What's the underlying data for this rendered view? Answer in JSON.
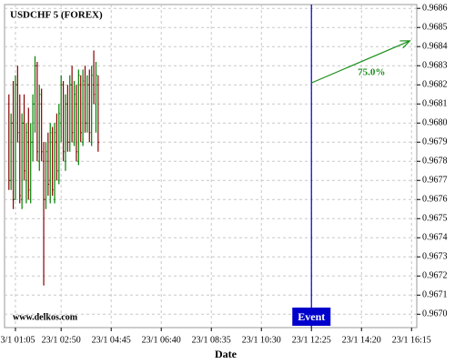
{
  "chart_data": {
    "type": "ohlc",
    "title": "USDCHF 5 (FOREX)",
    "watermark": "www.delkos.com",
    "x_label": "Date",
    "up_color": "#008000",
    "down_color": "#8b0000",
    "grid": true,
    "xlim": [
      "23/1 00:40",
      "23/1 16:27"
    ],
    "ylim": [
      0.96693,
      0.96862
    ],
    "yticks": [
      {
        "value": 0.967,
        "label": "0.9670"
      },
      0.9671,
      0.9672,
      0.9673,
      0.9674,
      0.9675,
      0.9676,
      0.9677,
      0.9678,
      0.9679,
      {
        "value": 0.968,
        "label": "0.9680"
      },
      0.9681,
      0.9682,
      0.9683,
      0.9684,
      0.9685,
      0.9686
    ],
    "xticks": [
      "23/1 01:05",
      "23/1 02:50",
      "23/1 04:45",
      "23/1 06:40",
      "23/1 08:35",
      "23/1 10:30",
      "23/1 12:25",
      "23/1 14:20",
      "23/1 16:15"
    ],
    "x": [
      "23/1 00:50",
      "23/1 00:55",
      "23/1 01:00",
      "23/1 01:05",
      "23/1 01:10",
      "23/1 01:15",
      "23/1 01:20",
      "23/1 01:25",
      "23/1 01:30",
      "23/1 01:35",
      "23/1 01:40",
      "23/1 01:45",
      "23/1 01:50",
      "23/1 01:55",
      "23/1 02:00",
      "23/1 02:05",
      "23/1 02:10",
      "23/1 02:15",
      "23/1 02:20",
      "23/1 02:25",
      "23/1 02:30",
      "23/1 02:35",
      "23/1 02:40",
      "23/1 02:45",
      "23/1 02:50",
      "23/1 02:55",
      "23/1 03:00",
      "23/1 03:05",
      "23/1 03:10",
      "23/1 03:15",
      "23/1 03:20",
      "23/1 03:25",
      "23/1 03:30",
      "23/1 03:35",
      "23/1 03:40",
      "23/1 03:45",
      "23/1 03:50",
      "23/1 03:55",
      "23/1 04:00",
      "23/1 04:05",
      "23/1 04:10",
      "23/1 04:15"
    ],
    "open": [
      0.9681,
      0.9677,
      0.968,
      0.9676,
      0.9682,
      0.9679,
      0.9676,
      0.968,
      0.9677,
      0.9679,
      0.9676,
      0.9679,
      0.9681,
      0.9683,
      0.9678,
      0.9681,
      0.9678,
      0.9676,
      0.9678,
      0.9677,
      0.9679,
      0.9676,
      0.9679,
      0.9677,
      0.968,
      0.9682,
      0.9678,
      0.9681,
      0.9679,
      0.9682,
      0.9679,
      0.9681,
      0.9678,
      0.9682,
      0.9679,
      0.9682,
      0.968,
      0.9682,
      0.9679,
      0.9682,
      0.9681,
      0.9682
    ],
    "high": [
      0.96815,
      0.96805,
      0.96822,
      0.96825,
      0.9683,
      0.96815,
      0.96805,
      0.96815,
      0.968,
      0.96808,
      0.968,
      0.96815,
      0.96835,
      0.96832,
      0.9682,
      0.96818,
      0.9679,
      0.9679,
      0.96795,
      0.968,
      0.96798,
      0.968,
      0.96805,
      0.9681,
      0.96825,
      0.96822,
      0.96815,
      0.9682,
      0.96825,
      0.9683,
      0.96822,
      0.9682,
      0.96828,
      0.96825,
      0.96828,
      0.9683,
      0.96825,
      0.96828,
      0.9683,
      0.96838,
      0.96832,
      0.96825
    ],
    "low": [
      0.96765,
      0.96765,
      0.96755,
      0.9676,
      0.9679,
      0.96758,
      0.96755,
      0.9677,
      0.96758,
      0.9676,
      0.96758,
      0.9678,
      0.96795,
      0.9678,
      0.96775,
      0.9678,
      0.96715,
      0.96755,
      0.96762,
      0.96758,
      0.96762,
      0.96758,
      0.9677,
      0.96768,
      0.9679,
      0.9678,
      0.96775,
      0.96785,
      0.96785,
      0.9679,
      0.96788,
      0.9678,
      0.96778,
      0.9679,
      0.96788,
      0.96795,
      0.96795,
      0.9679,
      0.96788,
      0.9681,
      0.96795,
      0.96785
    ],
    "close": [
      0.9677,
      0.968,
      0.9676,
      0.9682,
      0.96795,
      0.96762,
      0.968,
      0.96775,
      0.96795,
      0.96765,
      0.9679,
      0.9681,
      0.9683,
      0.96785,
      0.96815,
      0.96785,
      0.9676,
      0.96785,
      0.96768,
      0.96795,
      0.96765,
      0.96795,
      0.96775,
      0.96805,
      0.9682,
      0.96785,
      0.9681,
      0.9679,
      0.9682,
      0.96795,
      0.96815,
      0.96785,
      0.96825,
      0.96795,
      0.96822,
      0.968,
      0.9682,
      0.96795,
      0.96825,
      0.96815,
      0.96825,
      0.9679
    ],
    "event": {
      "x": "23/1 12:25",
      "label": "Event",
      "color": "#0000cc"
    },
    "arrow": {
      "x1": "23/1 12:25",
      "y1": 0.96821,
      "x2": "23/1 16:11",
      "y2": 0.96843,
      "label": "75.0%",
      "color": "#1a8f1a"
    }
  }
}
